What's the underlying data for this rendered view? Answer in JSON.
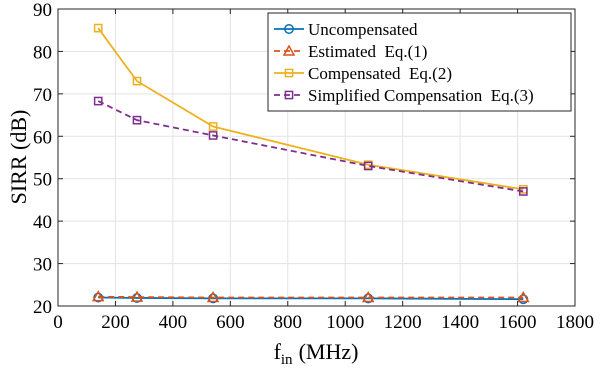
{
  "chart_data": {
    "type": "line",
    "title": "",
    "xlabel": {
      "main": "f",
      "sub": "in",
      "unit": "(MHz)"
    },
    "ylabel": "SIRR (dB)",
    "xlim": [
      0,
      1800
    ],
    "ylim": [
      20,
      90
    ],
    "xticks": [
      0,
      200,
      400,
      600,
      800,
      1000,
      1200,
      1400,
      1600,
      1800
    ],
    "yticks": [
      20,
      30,
      40,
      50,
      60,
      70,
      80,
      90
    ],
    "grid": true,
    "legend_position": "top-right",
    "x": [
      140,
      275,
      540,
      1080,
      1620
    ],
    "series": [
      {
        "name": "Uncompensated",
        "values": [
          22.0,
          21.9,
          21.8,
          21.8,
          21.6
        ],
        "color": "#0072bd",
        "marker": "circle",
        "dash": "solid"
      },
      {
        "name": "Estimated  Eq.(1)",
        "values": [
          22.2,
          22.1,
          22.0,
          22.0,
          22.0
        ],
        "color": "#d95319",
        "marker": "triangle",
        "dash": "dashed"
      },
      {
        "name": "Compensated  Eq.(2)",
        "values": [
          85.5,
          73.0,
          62.3,
          53.3,
          47.5
        ],
        "color": "#edb120",
        "marker": "square",
        "dash": "solid"
      },
      {
        "name": "Simplified Compensation  Eq.(3)",
        "values": [
          68.3,
          63.8,
          60.2,
          53.0,
          47.0
        ],
        "color": "#7e2f8e",
        "marker": "square",
        "dash": "dashed"
      }
    ]
  }
}
